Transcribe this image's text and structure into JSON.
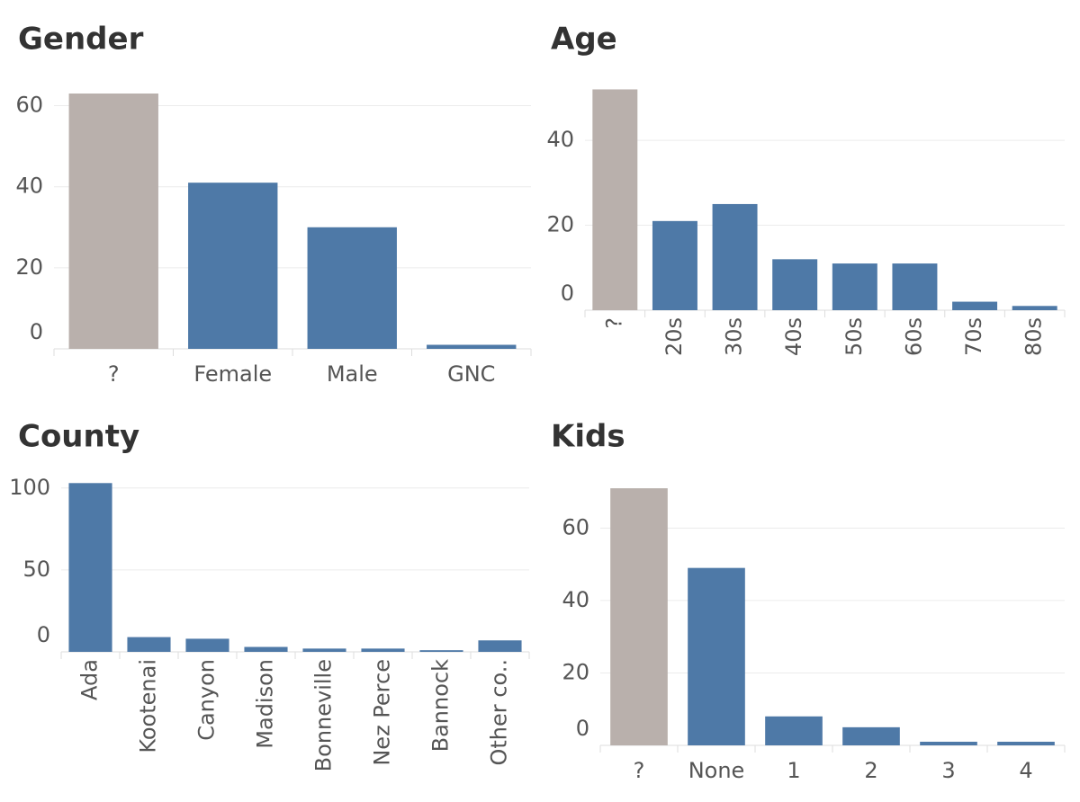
{
  "chart_data": [
    {
      "type": "bar",
      "title": "Gender",
      "categories": [
        "?",
        "Female",
        "Male",
        "GNC"
      ],
      "values": [
        63,
        41,
        30,
        1
      ],
      "colors": [
        "#b9b0ac",
        "#4e79a7",
        "#4e79a7",
        "#4e79a7"
      ],
      "ylim": [
        0,
        65
      ],
      "yticks": [
        0,
        20,
        40,
        60
      ],
      "grid": true,
      "rotate_labels": false
    },
    {
      "type": "bar",
      "title": "Age",
      "categories": [
        "?",
        "20s",
        "30s",
        "40s",
        "50s",
        "60s",
        "70s",
        "80s"
      ],
      "values": [
        52,
        21,
        25,
        12,
        11,
        11,
        2,
        1
      ],
      "colors": [
        "#b9b0ac",
        "#4e79a7",
        "#4e79a7",
        "#4e79a7",
        "#4e79a7",
        "#4e79a7",
        "#4e79a7",
        "#4e79a7"
      ],
      "ylim": [
        0,
        54
      ],
      "yticks": [
        0,
        20,
        40
      ],
      "grid": true,
      "rotate_labels": true
    },
    {
      "type": "bar",
      "title": "County",
      "categories": [
        "Ada",
        "Kootenai",
        "Canyon",
        "Madison",
        "Bonneville",
        "Nez Perce",
        "Bannock",
        "Other co.."
      ],
      "values": [
        103,
        9,
        8,
        3,
        2,
        2,
        1,
        7
      ],
      "colors": [
        "#4e79a7",
        "#4e79a7",
        "#4e79a7",
        "#4e79a7",
        "#4e79a7",
        "#4e79a7",
        "#4e79a7",
        "#4e79a7"
      ],
      "ylim": [
        0,
        107
      ],
      "yticks": [
        0,
        50,
        100
      ],
      "grid": true,
      "rotate_labels": true
    },
    {
      "type": "bar",
      "title": "Kids",
      "categories": [
        "?",
        "None",
        "1",
        "2",
        "3",
        "4"
      ],
      "values": [
        71,
        49,
        8,
        5,
        1,
        1
      ],
      "colors": [
        "#b9b0ac",
        "#4e79a7",
        "#4e79a7",
        "#4e79a7",
        "#4e79a7",
        "#4e79a7"
      ],
      "ylim": [
        0,
        73
      ],
      "yticks": [
        0,
        20,
        40,
        60
      ],
      "grid": true,
      "rotate_labels": false
    }
  ]
}
